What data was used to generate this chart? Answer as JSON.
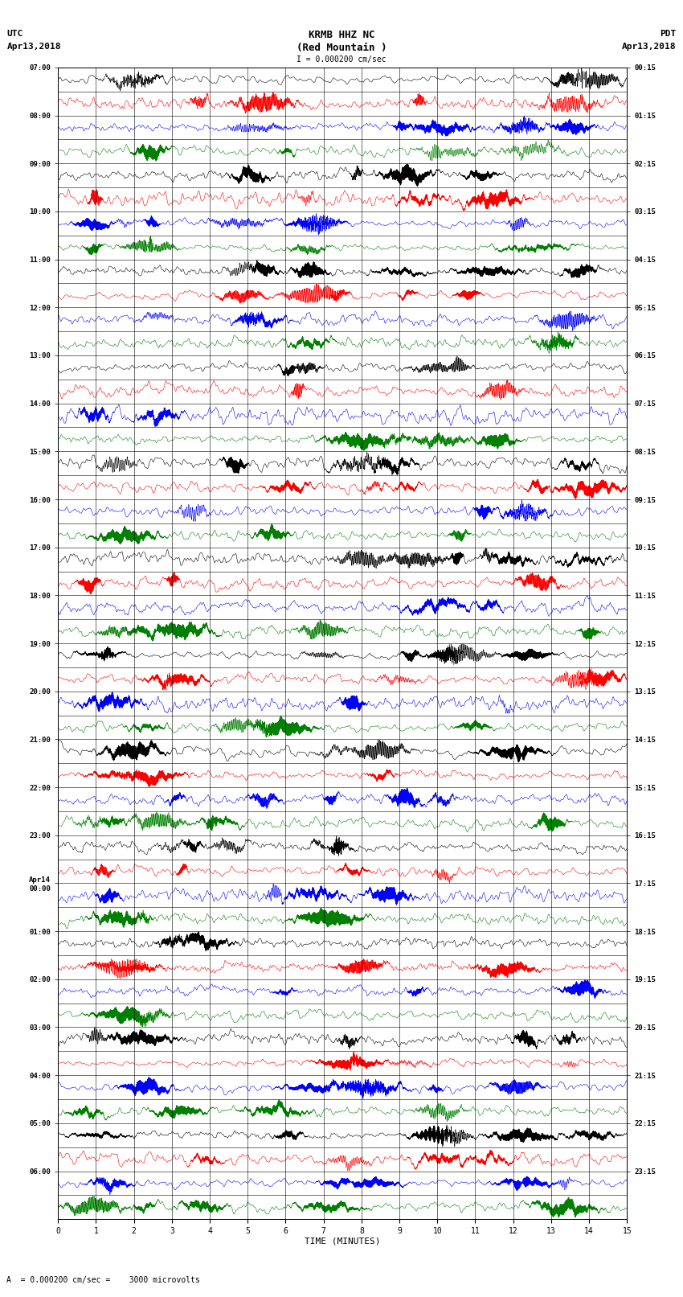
{
  "title_line1": "KRMB HHZ NC",
  "title_line2": "(Red Mountain )",
  "title_line3": "I = 0.000200 cm/sec",
  "left_header_line1": "UTC",
  "left_header_line2": "Apr13,2018",
  "right_header_line1": "PDT",
  "right_header_line2": "Apr13,2018",
  "xlabel": "TIME (MINUTES)",
  "footer": "A  = 0.000200 cm/sec =    3000 microvolts",
  "left_times": [
    "07:00",
    "",
    "08:00",
    "",
    "09:00",
    "",
    "10:00",
    "",
    "11:00",
    "",
    "12:00",
    "",
    "13:00",
    "",
    "14:00",
    "",
    "15:00",
    "",
    "16:00",
    "",
    "17:00",
    "",
    "18:00",
    "",
    "19:00",
    "",
    "20:00",
    "",
    "21:00",
    "",
    "22:00",
    "",
    "23:00",
    "",
    "Apr14\n00:00",
    "",
    "01:00",
    "",
    "02:00",
    "",
    "03:00",
    "",
    "04:00",
    "",
    "05:00",
    "",
    "06:00",
    ""
  ],
  "right_times": [
    "00:15",
    "",
    "01:15",
    "",
    "02:15",
    "",
    "03:15",
    "",
    "04:15",
    "",
    "05:15",
    "",
    "06:15",
    "",
    "07:15",
    "",
    "08:15",
    "",
    "09:15",
    "",
    "10:15",
    "",
    "11:15",
    "",
    "12:15",
    "",
    "13:15",
    "",
    "14:15",
    "",
    "15:15",
    "",
    "16:15",
    "",
    "17:15",
    "",
    "18:15",
    "",
    "19:15",
    "",
    "20:15",
    "",
    "21:15",
    "",
    "22:15",
    "",
    "23:15",
    ""
  ],
  "n_rows": 48,
  "trace_color_cycle": [
    "black",
    "red",
    "blue",
    "green"
  ],
  "bg_color": "white",
  "x_ticks": [
    0,
    1,
    2,
    3,
    4,
    5,
    6,
    7,
    8,
    9,
    10,
    11,
    12,
    13,
    14,
    15
  ],
  "x_min": 0,
  "x_max": 15
}
